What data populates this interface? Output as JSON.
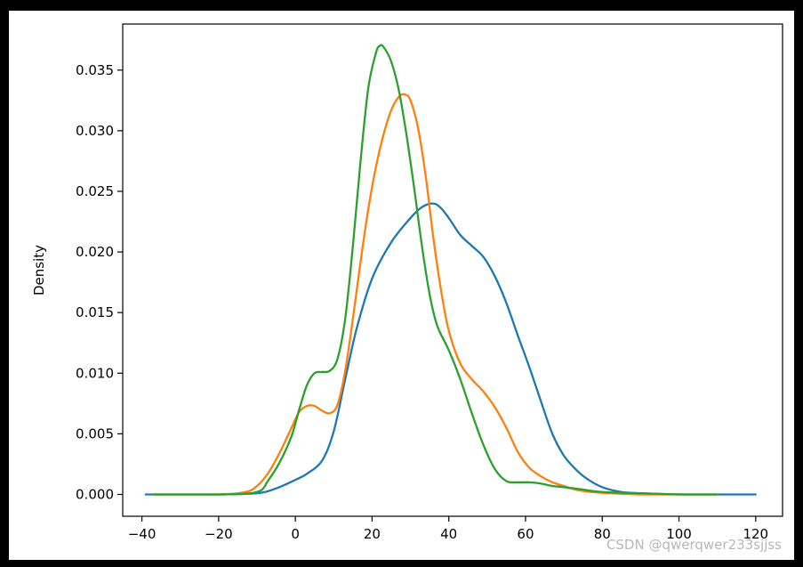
{
  "chart_data": {
    "type": "line",
    "title": "",
    "xlabel": "",
    "ylabel": "Density",
    "xlim": [
      -45,
      127
    ],
    "ylim": [
      -0.0018,
      0.0388
    ],
    "xticks": [
      -40,
      -20,
      0,
      20,
      40,
      60,
      80,
      100,
      120
    ],
    "xtick_labels": [
      "−40",
      "−20",
      "0",
      "20",
      "40",
      "60",
      "80",
      "100",
      "120"
    ],
    "yticks": [
      0.0,
      0.005,
      0.01,
      0.015,
      0.02,
      0.025,
      0.03,
      0.035
    ],
    "ytick_labels": [
      "0.000",
      "0.005",
      "0.010",
      "0.015",
      "0.020",
      "0.025",
      "0.030",
      "0.035"
    ],
    "grid": false,
    "series": [
      {
        "color": "#1f77b4",
        "x": [
          -39,
          -20,
          -10,
          -5,
          0,
          3,
          7,
          10,
          13,
          16,
          20,
          25,
          30,
          33,
          36,
          38,
          40,
          43,
          46,
          49,
          52,
          55,
          58,
          61,
          64,
          67,
          70,
          73,
          76,
          80,
          85,
          90,
          100,
          110,
          120
        ],
        "y": [
          0.0,
          0.0,
          0.0001,
          0.0005,
          0.0012,
          0.0017,
          0.0028,
          0.0052,
          0.0095,
          0.0137,
          0.0178,
          0.0208,
          0.0228,
          0.0237,
          0.024,
          0.0236,
          0.0228,
          0.0214,
          0.0205,
          0.0196,
          0.018,
          0.0158,
          0.0131,
          0.0105,
          0.0077,
          0.005,
          0.0032,
          0.0021,
          0.0013,
          0.0006,
          0.0002,
          0.0001,
          0.0,
          0.0,
          0.0
        ]
      },
      {
        "color": "#ff7f0e",
        "x": [
          -37,
          -20,
          -13,
          -10,
          -7,
          -4,
          -1,
          1,
          3,
          5,
          7,
          9,
          11,
          13,
          15,
          17,
          19,
          21,
          23,
          25,
          27,
          28.5,
          30,
          32,
          34,
          36,
          38,
          40,
          43,
          46,
          49,
          52,
          55,
          58,
          61,
          64,
          67,
          70,
          73,
          77,
          82,
          90,
          100,
          110
        ],
        "y": [
          0.0,
          0.0,
          0.0002,
          0.0007,
          0.0018,
          0.0035,
          0.0055,
          0.0068,
          0.0073,
          0.0073,
          0.0069,
          0.0067,
          0.0074,
          0.0102,
          0.0145,
          0.0192,
          0.0235,
          0.027,
          0.0297,
          0.0317,
          0.0328,
          0.033,
          0.0325,
          0.0302,
          0.0262,
          0.0211,
          0.0168,
          0.0135,
          0.0108,
          0.0095,
          0.0085,
          0.0072,
          0.0055,
          0.0035,
          0.0022,
          0.0015,
          0.001,
          0.0007,
          0.0004,
          0.0002,
          0.0001,
          0.0,
          0.0,
          0.0
        ]
      },
      {
        "color": "#2ca02c",
        "x": [
          -37,
          -20,
          -10,
          -7,
          -4,
          -1,
          1,
          3,
          5,
          7,
          9,
          11,
          13,
          15,
          17,
          19,
          21,
          22,
          23,
          25,
          27,
          29,
          31,
          33,
          35,
          37,
          40,
          43,
          46,
          49,
          52,
          55,
          58,
          61,
          64,
          67,
          70,
          75,
          80,
          90,
          100,
          110
        ],
        "y": [
          0.0,
          0.0,
          0.0002,
          0.0012,
          0.0027,
          0.0048,
          0.007,
          0.009,
          0.01,
          0.0101,
          0.0102,
          0.0112,
          0.0145,
          0.0205,
          0.0275,
          0.0335,
          0.0364,
          0.037,
          0.0369,
          0.0357,
          0.0333,
          0.0296,
          0.0252,
          0.0205,
          0.0165,
          0.0139,
          0.0119,
          0.0095,
          0.0067,
          0.0041,
          0.0021,
          0.0011,
          0.001,
          0.001,
          0.0009,
          0.0007,
          0.0006,
          0.0004,
          0.0002,
          0.0001,
          0.0,
          0.0
        ]
      }
    ]
  },
  "watermark": "CSDN @qwerqwer233sjjss"
}
